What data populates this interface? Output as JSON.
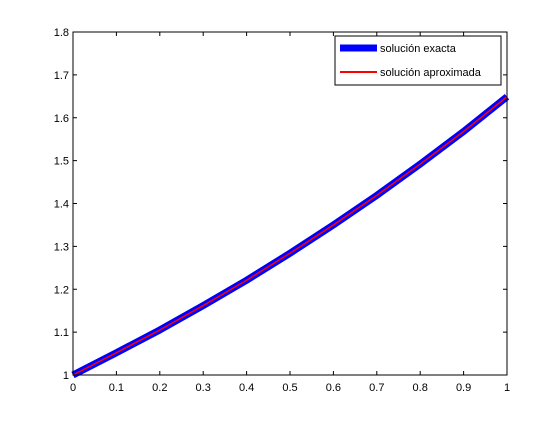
{
  "chart_data": {
    "type": "line",
    "title": "",
    "xlabel": "",
    "ylabel": "",
    "xlim": [
      0,
      1
    ],
    "ylim": [
      1,
      1.8
    ],
    "x_ticks": [
      0,
      0.1,
      0.2,
      0.3,
      0.4,
      0.5,
      0.6,
      0.7,
      0.8,
      0.9,
      1
    ],
    "x_tick_labels": [
      "0",
      "0.1",
      "0.2",
      "0.3",
      "0.4",
      "0.5",
      "0.6",
      "0.7",
      "0.8",
      "0.9",
      "1"
    ],
    "y_ticks": [
      1,
      1.1,
      1.2,
      1.3,
      1.4,
      1.5,
      1.6,
      1.7,
      1.8
    ],
    "y_tick_labels": [
      "1",
      "1.1",
      "1.2",
      "1.3",
      "1.4",
      "1.5",
      "1.6",
      "1.7",
      "1.8"
    ],
    "grid": false,
    "legend_position": "top-right",
    "x": [
      0,
      0.1,
      0.2,
      0.3,
      0.4,
      0.5,
      0.6,
      0.7,
      0.8,
      0.9,
      1.0
    ],
    "series": [
      {
        "name": "solución exacta",
        "color": "#0000ff",
        "style": "thick",
        "values": [
          1.0,
          1.052,
          1.105,
          1.162,
          1.221,
          1.284,
          1.35,
          1.419,
          1.492,
          1.568,
          1.649
        ]
      },
      {
        "name": "solución aproximada",
        "color": "#ff0000",
        "style": "thin",
        "values": [
          1.0,
          1.052,
          1.105,
          1.162,
          1.221,
          1.284,
          1.35,
          1.419,
          1.492,
          1.568,
          1.649
        ]
      }
    ]
  }
}
